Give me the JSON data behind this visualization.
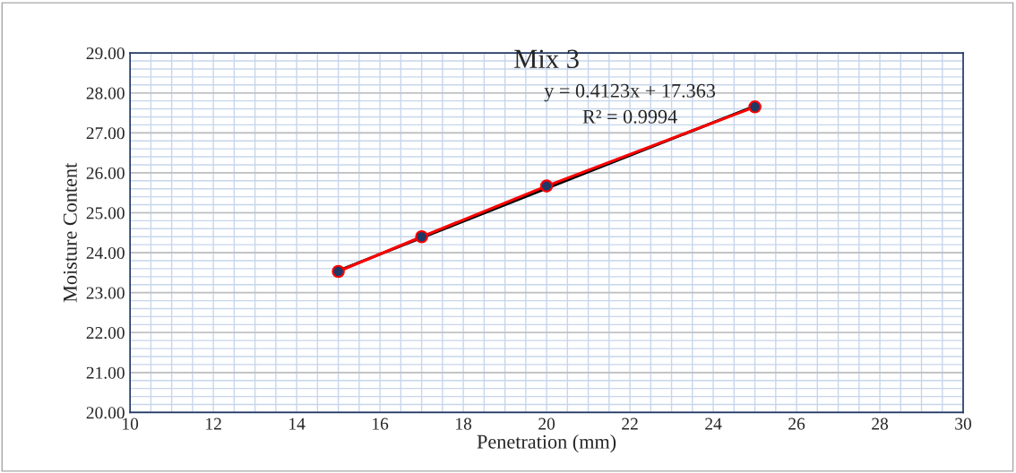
{
  "chart_data": {
    "type": "line",
    "title": "Mix 3",
    "xlabel": "Penetration (mm)",
    "ylabel": "Moisture Content",
    "xlim": [
      10,
      30
    ],
    "xticks": [
      10,
      12,
      14,
      16,
      18,
      20,
      22,
      24,
      26,
      28,
      30
    ],
    "ylim": [
      20,
      29
    ],
    "yticks": [
      {
        "value": 20,
        "label": "20.00"
      },
      {
        "value": 21,
        "label": "21.00"
      },
      {
        "value": 22,
        "label": "22.00"
      },
      {
        "value": 23,
        "label": "23.00"
      },
      {
        "value": 24,
        "label": "24.00"
      },
      {
        "value": 25,
        "label": "25.00"
      },
      {
        "value": 26,
        "label": "26.00"
      },
      {
        "value": 27,
        "label": "27.00"
      },
      {
        "value": 28,
        "label": "28.00"
      },
      {
        "value": 29,
        "label": "29.00"
      }
    ],
    "grid": true,
    "legend": false,
    "series": [
      {
        "color": "#ff0000",
        "marker": "circle",
        "x": [
          15,
          17,
          20,
          25
        ],
        "values": [
          23.53,
          24.4,
          25.67,
          27.65
        ]
      },
      {
        "type": "line",
        "color": "#000000",
        "marker": "none",
        "x": [
          15,
          25
        ],
        "values": [
          23.55,
          27.67
        ]
      }
    ],
    "annotations": [
      "y = 0.4123x + 17.363",
      "R² = 0.9994"
    ]
  }
}
